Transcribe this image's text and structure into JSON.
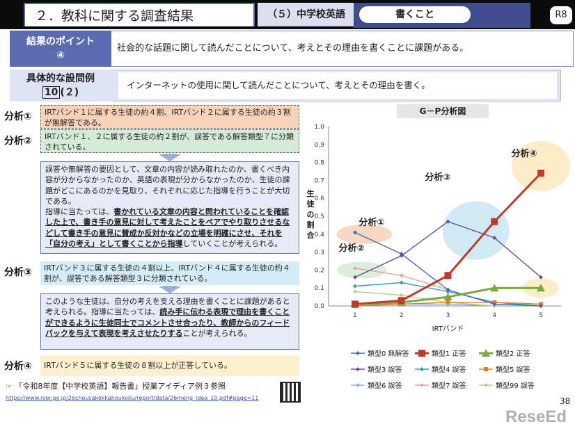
{
  "header": {
    "title": "２．教科に関する調査結果",
    "subject": "（５）中学校英語",
    "skill": "書くこと",
    "grade_badge": "R8"
  },
  "result_point": {
    "label_line1": "結果のポイント",
    "label_line2": "④",
    "text": "社会的な話題に関して読んだことについて、考えとその理由を書くことに課題がある。"
  },
  "example": {
    "label_line1": "具体的な設問例",
    "label_num": "10",
    "label_sub": "(２)",
    "text": "インターネットの使用に関して読んだことについて、考えとその理由を書く。"
  },
  "analyses": {
    "a1_label": "分析①",
    "a1_text": "IRTバンド１に属する生徒の約４割、IRTバンド２に属する生徒の約３割が無解答である。",
    "a2_label": "分析②",
    "a2_text": "IRTバンド１、２に属する生徒の約２割が、誤答である解答類型７に分類されている。",
    "a3_label": "分析③",
    "a3_text": "IRTバンド３に属する生徒の４割以上、IRTバンド４に属する生徒の約４割が、誤答である解答類型３に分類されている。",
    "a4_label": "分析④",
    "a4_text": "IRTバンド５に属する生徒の８割以上が正答している。"
  },
  "guidance1": {
    "p1": "誤答や無解答の要因として、文章の内容が読み取れたのか、書くべき内容が分からなかったのか、英語の表現が分からなかったのか、生徒の課題がどこにあるのかを見取り、それぞれに応じた指導を行うことが大切である。",
    "p2_pre": "指導に当たっては、",
    "p2_bold": "書かれている文章の内容と問われていることを確認した上で、書き手の意見に対して考えたことをペアでやり取りさせるなどして書き手の意見に賛成か反対かなどの立場を明確にさせ、それを「自分の考え」として書くことから指導",
    "p2_post": "していくことが考えられる。"
  },
  "guidance2": {
    "p1": "このような生徒は、自分の考えを支える理由を書くことに課題があると考えられる。指導に当たっては、",
    "p1_bold": "読み手に伝わる表現で理由を書くことができるように生徒同士でコメントさせ合ったり、教師からのフィードバックを与えて表現を考えさせたりする",
    "p1_post": "ことが考えられる。"
  },
  "reference": {
    "text": "☞ 「令和8年度【中学校英語】報告書」授業アイディア例３参照",
    "url": "https://www.nier.go.jp/26chousakekkahoukoku/report/data/26meng_idea_10.pdf#page=11"
  },
  "page_number": "38",
  "watermark": "ReseEd",
  "chart_data": {
    "type": "line",
    "title": "G－P分析図",
    "xlabel": "IRTバンド",
    "ylabel": "生徒の割合",
    "x": [
      1,
      2,
      3,
      4,
      5
    ],
    "ylim": [
      0,
      1.0
    ],
    "yticks": [
      "0.0",
      "0.1",
      "0.2",
      "0.3",
      "0.4",
      "0.5",
      "0.6",
      "0.7",
      "0.8",
      "0.9",
      "1.0"
    ],
    "grid": false,
    "legend_position": "bottom",
    "series": [
      {
        "name": "類型0 無解答",
        "color": "#3d6fb0",
        "marker": "diamond",
        "values": [
          0.41,
          0.29,
          0.09,
          0.01,
          0.0
        ]
      },
      {
        "name": "類型1 正答",
        "color": "#c0392b",
        "marker": "square",
        "values": [
          0.01,
          0.03,
          0.17,
          0.47,
          0.74
        ]
      },
      {
        "name": "類型2 正答",
        "color": "#7aa93c",
        "marker": "triangle",
        "values": [
          0.01,
          0.02,
          0.05,
          0.1,
          0.1
        ]
      },
      {
        "name": "類型3 誤答",
        "color": "#6a4c93",
        "marker": "diamond",
        "values": [
          0.16,
          0.28,
          0.47,
          0.38,
          0.16
        ]
      },
      {
        "name": "類型4 誤答",
        "color": "#2e9bb8",
        "marker": "diamond",
        "values": [
          0.11,
          0.13,
          0.08,
          0.02,
          0.0
        ]
      },
      {
        "name": "類型5 誤答",
        "color": "#e67e22",
        "marker": "square",
        "values": [
          0.0,
          0.01,
          0.02,
          0.02,
          0.01
        ]
      },
      {
        "name": "類型6 誤答",
        "color": "#8fb0dd",
        "marker": "diamond",
        "values": [
          0.01,
          0.01,
          0.01,
          0.0,
          0.0
        ]
      },
      {
        "name": "類型7 誤答",
        "color": "#e8a0a0",
        "marker": "diamond",
        "values": [
          0.21,
          0.17,
          0.09,
          0.01,
          0.0
        ]
      },
      {
        "name": "類型99 誤答",
        "color": "#b5cf86",
        "marker": "diamond",
        "values": [
          0.08,
          0.06,
          0.02,
          0.0,
          0.0
        ]
      }
    ],
    "annotations": [
      {
        "text": "分析①",
        "x": 1,
        "y": 0.41
      },
      {
        "text": "分析②",
        "x": 1,
        "y": 0.21
      },
      {
        "text": "分析③",
        "x": 3.5,
        "y": 0.45
      },
      {
        "text": "分析④",
        "x": 5,
        "y": 0.74
      }
    ]
  }
}
